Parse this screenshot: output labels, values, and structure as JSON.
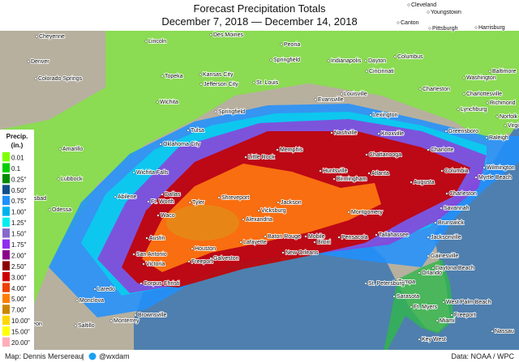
{
  "title": {
    "line1": "Forecast Precipitation Totals",
    "line2": "December 7, 2018  —  December 14, 2018"
  },
  "legend": {
    "title": "Precip.",
    "unit": "(in.)",
    "items": [
      {
        "label": "0.01",
        "color": "#7fff00"
      },
      {
        "label": "0.1",
        "color": "#00cd00"
      },
      {
        "label": "0.25\"",
        "color": "#008b00"
      },
      {
        "label": "0.50\"",
        "color": "#104e8b"
      },
      {
        "label": "0.75\"",
        "color": "#1e90ff"
      },
      {
        "label": "1.00\"",
        "color": "#00b2ee"
      },
      {
        "label": "1.25\"",
        "color": "#00eeee"
      },
      {
        "label": "1.50\"",
        "color": "#8968cd"
      },
      {
        "label": "1.75\"",
        "color": "#912cee"
      },
      {
        "label": "2.00\"",
        "color": "#8b008b"
      },
      {
        "label": "2.50\"",
        "color": "#8b0000"
      },
      {
        "label": "3.00\"",
        "color": "#cd0000"
      },
      {
        "label": "4.00\"",
        "color": "#ee4000"
      },
      {
        "label": "5.00\"",
        "color": "#ff7f00"
      },
      {
        "label": "7.00\"",
        "color": "#cd8500"
      },
      {
        "label": "10.00\"",
        "color": "#ffd700"
      },
      {
        "label": "15.00\"",
        "color": "#ffff00"
      },
      {
        "label": "20.00\"",
        "color": "#ffaeb9"
      }
    ]
  },
  "cities": [
    "Cheyenne",
    "Lincoln",
    "Des Moines",
    "Peoria",
    "Cleveland",
    "Youngstown",
    "Canton",
    "Pittsburgh",
    "Harrisburg",
    "Denver",
    "Springfield",
    "Indianapolis",
    "Dayton",
    "Columbus",
    "Baltimore",
    "Topeka",
    "Kansas City",
    "Cincinnati",
    "Washington",
    "Colorado Springs",
    "Jefferson City",
    "St. Louis",
    "Charleston",
    "Charlottesville",
    "Louisville",
    "Wichita",
    "Evansville",
    "Richmond",
    "Springfield",
    "Lexington",
    "Lynchburg",
    "Norfolk",
    "Virginia",
    "Tulsa",
    "Nashville",
    "Knoxville",
    "Greensboro",
    "Raleigh",
    "Amarillo",
    "Oklahoma City",
    "Charlotte",
    "Little Rock",
    "Memphis",
    "Chattanooga",
    "Wilmington",
    "Lubbock",
    "Wichita Falls",
    "Huntsville",
    "Atlanta",
    "Columbia",
    "Myrtle Beach",
    "Birmingham",
    "Carlsbad",
    "Abilene",
    "Dallas",
    "Ft. Worth",
    "Tyler",
    "Shreveport",
    "Jackson",
    "Augusta",
    "Charleston",
    "Odessa",
    "Vicksburg",
    "Montgomery",
    "Savannah",
    "Waco",
    "Alexandria",
    "Brunswick",
    "Austin",
    "Baton Rouge",
    "Mobile",
    "Pensacola",
    "Tallahassee",
    "Jacksonville",
    "Lafayette",
    "Biloxi",
    "San Antonio",
    "Houston",
    "New Orleans",
    "Freeport",
    "Galveston",
    "Gainesville",
    "Victoria",
    "Daytona Beach",
    "Orlando",
    "Laredo",
    "Corpus Christi",
    "Tampa",
    "St. Petersburg",
    "Sarasota",
    "Monclova",
    "Ft. Myers",
    "West Palm Beach",
    "Brownsville",
    "Freeport",
    "Torreon",
    "Saltillo",
    "Monterrey",
    "Miami",
    "Nassau",
    "Key West"
  ],
  "footer": {
    "credit": "Map: Dennis Mersereau",
    "handle": "@wxdam",
    "source": "Data: NOAA / WPC"
  }
}
